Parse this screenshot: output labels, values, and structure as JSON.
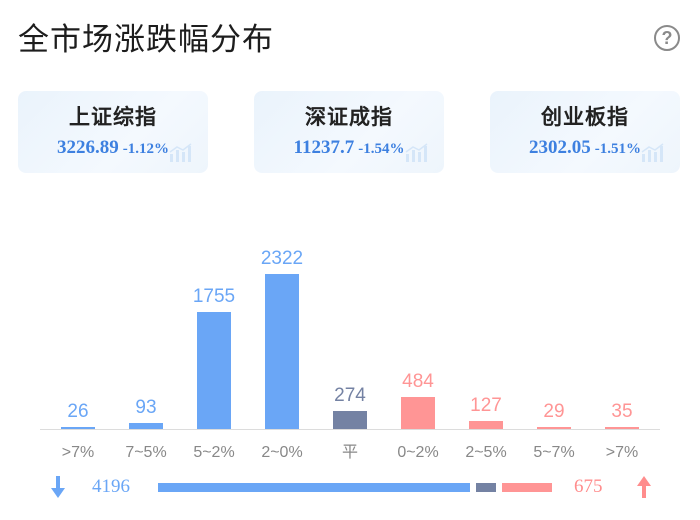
{
  "header": {
    "title": "全市场涨跌幅分布",
    "help_icon": "?"
  },
  "indices": [
    {
      "name": "上证综指",
      "value": "3226.89",
      "change": "-1.12%",
      "icon": "bar-chart-icon"
    },
    {
      "name": "深证成指",
      "value": "11237.7",
      "change": "-1.54%",
      "icon": "bar-chart-icon"
    },
    {
      "name": "创业板指",
      "value": "2302.05",
      "change": "-1.51%",
      "icon": "bar-chart-icon"
    }
  ],
  "colors": {
    "down": "#6aa6f6",
    "flat": "#7482a3",
    "up": "#ff9595",
    "axis": "#dcdcdc",
    "tick_text": "#888888",
    "index_blue": "#3d80e0"
  },
  "chart_data": {
    "type": "bar",
    "categories": [
      ">7%",
      "7~5%",
      "5~2%",
      "2~0%",
      "平",
      "0~2%",
      "2~5%",
      "5~7%",
      ">7%"
    ],
    "values": [
      26,
      93,
      1755,
      2322,
      274,
      484,
      127,
      29,
      35
    ],
    "groups": [
      "down",
      "down",
      "down",
      "down",
      "flat",
      "up",
      "up",
      "up",
      "up"
    ],
    "ylim": [
      0,
      2322
    ],
    "grid": false,
    "legend": "none"
  },
  "summary": {
    "down_count": "4196",
    "up_count": "675",
    "down_arrow_icon": "arrow-down-icon",
    "up_arrow_icon": "arrow-up-icon"
  }
}
